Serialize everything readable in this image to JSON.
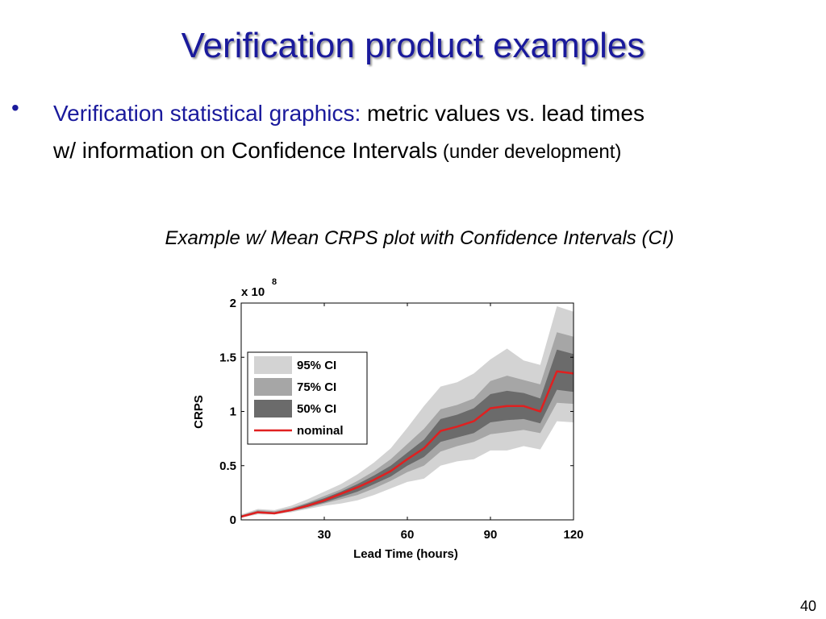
{
  "slide": {
    "title": "Verification product examples",
    "bullet_lead": "Verification statistical graphics:",
    "bullet_rest1": " metric values vs. lead times",
    "bullet_rest2": "w/ information on Confidence Intervals",
    "bullet_small": " (under development)",
    "caption": "Example w/ Mean CRPS plot with Confidence Intervals (CI)",
    "page_number": "40"
  },
  "chart_data": {
    "type": "area",
    "title": "",
    "xlabel": "Lead Time (hours)",
    "ylabel": "CRPS",
    "y_multiplier_label": "x 10",
    "y_multiplier_exp": "8",
    "xlim": [
      0,
      120
    ],
    "ylim": [
      0,
      2
    ],
    "x_ticks": [
      30,
      60,
      90,
      120
    ],
    "x_tick_labels": [
      "30",
      "60",
      "90",
      "120"
    ],
    "y_ticks": [
      0,
      0.5,
      1,
      1.5,
      2
    ],
    "y_tick_labels": [
      "0",
      "0.5",
      "1",
      "1.5",
      "2"
    ],
    "legend_position": "upper-left",
    "colors": {
      "ci95": "#d3d3d3",
      "ci75": "#a6a6a6",
      "ci50": "#6b6b6b",
      "nominal": "#e02020"
    },
    "x": [
      0,
      6,
      12,
      18,
      24,
      30,
      36,
      42,
      48,
      54,
      60,
      66,
      72,
      78,
      84,
      90,
      96,
      102,
      108,
      114,
      120
    ],
    "nominal": [
      0.03,
      0.07,
      0.06,
      0.09,
      0.13,
      0.18,
      0.24,
      0.3,
      0.37,
      0.45,
      0.56,
      0.66,
      0.82,
      0.86,
      0.91,
      1.03,
      1.05,
      1.05,
      1.0,
      1.37,
      1.35
    ],
    "ci95": {
      "lower": [
        0.02,
        0.05,
        0.05,
        0.07,
        0.1,
        0.13,
        0.15,
        0.18,
        0.23,
        0.29,
        0.35,
        0.38,
        0.5,
        0.54,
        0.56,
        0.64,
        0.64,
        0.68,
        0.65,
        0.91,
        0.9
      ],
      "upper": [
        0.05,
        0.1,
        0.09,
        0.13,
        0.19,
        0.26,
        0.33,
        0.42,
        0.53,
        0.66,
        0.85,
        1.05,
        1.23,
        1.27,
        1.35,
        1.48,
        1.58,
        1.47,
        1.43,
        1.97,
        1.92
      ]
    },
    "ci75": {
      "lower": [
        0.02,
        0.06,
        0.05,
        0.08,
        0.11,
        0.15,
        0.19,
        0.23,
        0.29,
        0.36,
        0.44,
        0.5,
        0.63,
        0.68,
        0.72,
        0.79,
        0.81,
        0.83,
        0.8,
        1.08,
        1.07
      ],
      "upper": [
        0.04,
        0.09,
        0.08,
        0.11,
        0.16,
        0.22,
        0.28,
        0.36,
        0.45,
        0.56,
        0.7,
        0.84,
        1.02,
        1.06,
        1.12,
        1.28,
        1.33,
        1.29,
        1.25,
        1.73,
        1.69
      ]
    },
    "ci50": {
      "lower": [
        0.03,
        0.06,
        0.06,
        0.08,
        0.12,
        0.16,
        0.21,
        0.26,
        0.33,
        0.4,
        0.5,
        0.58,
        0.72,
        0.76,
        0.8,
        0.9,
        0.92,
        0.93,
        0.89,
        1.2,
        1.18
      ],
      "upper": [
        0.04,
        0.08,
        0.07,
        0.1,
        0.15,
        0.2,
        0.26,
        0.33,
        0.41,
        0.5,
        0.62,
        0.74,
        0.93,
        0.97,
        1.03,
        1.16,
        1.19,
        1.17,
        1.12,
        1.57,
        1.53
      ]
    },
    "legend": [
      {
        "label": "95% CI",
        "key": "ci95"
      },
      {
        "label": "75% CI",
        "key": "ci75"
      },
      {
        "label": "50% CI",
        "key": "ci50"
      },
      {
        "label": "nominal",
        "key": "nominal"
      }
    ]
  }
}
